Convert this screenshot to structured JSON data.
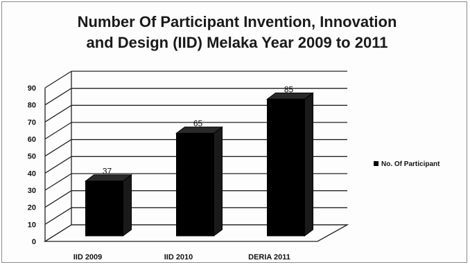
{
  "chart_data": {
    "type": "bar",
    "title_lines": [
      "Number Of Participant Invention, Innovation",
      "and Design (IID) Melaka Year 2009 to 2011"
    ],
    "categories": [
      "IID 2009",
      "IID 2010",
      "DERIA 2011"
    ],
    "series": [
      {
        "name": "No. Of Participant",
        "values": [
          37,
          65,
          85
        ],
        "color": "#000000"
      }
    ],
    "data_labels": [
      "37",
      "65",
      "85"
    ],
    "y_ticks": [
      0,
      10,
      20,
      30,
      40,
      50,
      60,
      70,
      80,
      90
    ],
    "ylim": [
      0,
      90
    ],
    "grid": true,
    "legend_position": "right",
    "style": "3d-column"
  }
}
